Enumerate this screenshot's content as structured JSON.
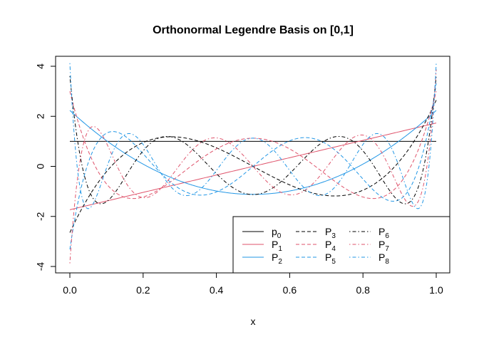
{
  "chart_data": {
    "type": "line",
    "title": "Orthonormal Legendre Basis on [0,1]",
    "xlabel": "x",
    "ylabel": "",
    "xlim": [
      0,
      1
    ],
    "ylim": [
      -4,
      4
    ],
    "x_ticks": [
      {
        "value": 0.0,
        "label": "0.0"
      },
      {
        "value": 0.2,
        "label": "0.2"
      },
      {
        "value": 0.4,
        "label": "0.4"
      },
      {
        "value": 0.6,
        "label": "0.6"
      },
      {
        "value": 0.8,
        "label": "0.8"
      },
      {
        "value": 1.0,
        "label": "1.0"
      }
    ],
    "y_ticks": [
      {
        "value": -4,
        "label": "-4"
      },
      {
        "value": -2,
        "label": "-2"
      },
      {
        "value": 0,
        "label": "0"
      },
      {
        "value": 2,
        "label": "2"
      },
      {
        "value": 4,
        "label": "4"
      }
    ],
    "grid": false,
    "legend_position": "bottom-right",
    "series": [
      {
        "degree": 0,
        "name_base": "p",
        "name_sub": "0",
        "color": "#000000",
        "dash": "solid"
      },
      {
        "degree": 1,
        "name_base": "P",
        "name_sub": "1",
        "color": "#DF536B",
        "dash": "solid"
      },
      {
        "degree": 2,
        "name_base": "P",
        "name_sub": "2",
        "color": "#2297E6",
        "dash": "solid"
      },
      {
        "degree": 3,
        "name_base": "P",
        "name_sub": "3",
        "color": "#000000",
        "dash": "dashed"
      },
      {
        "degree": 4,
        "name_base": "P",
        "name_sub": "4",
        "color": "#DF536B",
        "dash": "dashed"
      },
      {
        "degree": 5,
        "name_base": "P",
        "name_sub": "5",
        "color": "#2297E6",
        "dash": "dashed"
      },
      {
        "degree": 6,
        "name_base": "P",
        "name_sub": "6",
        "color": "#000000",
        "dash": "dotdash"
      },
      {
        "degree": 7,
        "name_base": "P",
        "name_sub": "7",
        "color": "#DF536B",
        "dash": "dotdash"
      },
      {
        "degree": 8,
        "name_base": "P",
        "name_sub": "8",
        "color": "#2297E6",
        "dash": "dotdash"
      }
    ]
  }
}
